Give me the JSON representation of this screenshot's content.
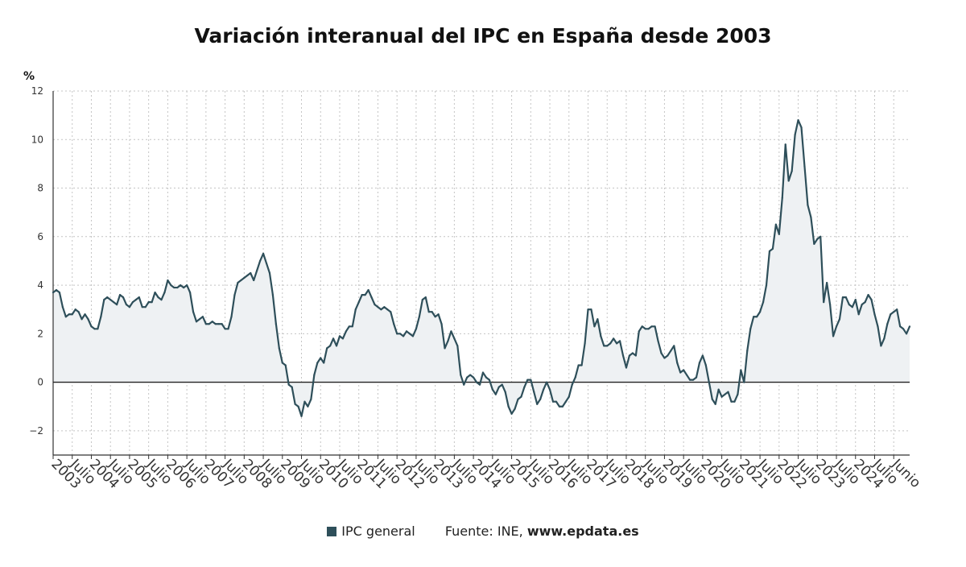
{
  "chart_data": {
    "type": "area",
    "title": "Variación interanual del IPC en España desde 2003",
    "ylabel": "%",
    "ylim": [
      -3,
      12
    ],
    "yticks": [
      12,
      10,
      8,
      6,
      4,
      2,
      0,
      -2
    ],
    "ytick_labels": [
      "12",
      "10",
      "8",
      "6",
      "4",
      "2",
      "0",
      "−2"
    ],
    "x_start": "2003-01",
    "x_end": "2025-06",
    "xtick_labels": [
      "2003",
      "Julio",
      "2004",
      "Julio",
      "2005",
      "Julio",
      "2006",
      "Julio",
      "2007",
      "Julio",
      "2008",
      "Julio",
      "2009",
      "Julio",
      "2010",
      "Julio",
      "2011",
      "Julio",
      "2012",
      "Julio",
      "2013",
      "Julio",
      "2014",
      "Julio",
      "2015",
      "Julio",
      "2016",
      "Julio",
      "2017",
      "Julio",
      "2018",
      "Julio",
      "2019",
      "Julio",
      "2020",
      "Julio",
      "2021",
      "Julio",
      "2022",
      "Julio",
      "2023",
      "Julio",
      "2024",
      "Julio",
      "Junio"
    ],
    "grid": true,
    "legend_position": "bottom-center",
    "series": [
      {
        "name": "IPC general",
        "color": "#2e4f5a",
        "fill": "#eef1f3",
        "values": [
          3.7,
          3.8,
          3.7,
          3.1,
          2.7,
          2.8,
          2.8,
          3.0,
          2.9,
          2.6,
          2.8,
          2.6,
          2.3,
          2.2,
          2.2,
          2.7,
          3.4,
          3.5,
          3.4,
          3.3,
          3.2,
          3.6,
          3.5,
          3.2,
          3.1,
          3.3,
          3.4,
          3.5,
          3.1,
          3.1,
          3.3,
          3.3,
          3.7,
          3.5,
          3.4,
          3.7,
          4.2,
          4.0,
          3.9,
          3.9,
          4.0,
          3.9,
          4.0,
          3.7,
          2.9,
          2.5,
          2.6,
          2.7,
          2.4,
          2.4,
          2.5,
          2.4,
          2.4,
          2.4,
          2.2,
          2.2,
          2.7,
          3.6,
          4.1,
          4.2,
          4.3,
          4.4,
          4.5,
          4.2,
          4.6,
          5.0,
          5.3,
          4.9,
          4.5,
          3.6,
          2.4,
          1.4,
          0.8,
          0.7,
          -0.1,
          -0.2,
          -0.9,
          -1.0,
          -1.4,
          -0.8,
          -1.0,
          -0.7,
          0.3,
          0.8,
          1.0,
          0.8,
          1.4,
          1.5,
          1.8,
          1.5,
          1.9,
          1.8,
          2.1,
          2.3,
          2.3,
          3.0,
          3.3,
          3.6,
          3.6,
          3.8,
          3.5,
          3.2,
          3.1,
          3.0,
          3.1,
          3.0,
          2.9,
          2.4,
          2.0,
          2.0,
          1.9,
          2.1,
          2.0,
          1.9,
          2.2,
          2.7,
          3.4,
          3.5,
          2.9,
          2.9,
          2.7,
          2.8,
          2.4,
          1.4,
          1.7,
          2.1,
          1.8,
          1.5,
          0.3,
          -0.1,
          0.2,
          0.3,
          0.2,
          0.0,
          -0.1,
          0.4,
          0.2,
          0.1,
          -0.3,
          -0.5,
          -0.2,
          -0.1,
          -0.4,
          -1.0,
          -1.3,
          -1.1,
          -0.7,
          -0.6,
          -0.2,
          0.1,
          0.1,
          -0.4,
          -0.9,
          -0.7,
          -0.3,
          0.0,
          -0.3,
          -0.8,
          -0.8,
          -1.0,
          -1.0,
          -0.8,
          -0.6,
          -0.1,
          0.2,
          0.7,
          0.7,
          1.6,
          3.0,
          3.0,
          2.3,
          2.6,
          1.9,
          1.5,
          1.5,
          1.6,
          1.8,
          1.6,
          1.7,
          1.1,
          0.6,
          1.1,
          1.2,
          1.1,
          2.1,
          2.3,
          2.2,
          2.2,
          2.3,
          2.3,
          1.7,
          1.2,
          1.0,
          1.1,
          1.3,
          1.5,
          0.8,
          0.4,
          0.5,
          0.3,
          0.1,
          0.1,
          0.2,
          0.8,
          1.1,
          0.7,
          0.0,
          -0.7,
          -0.9,
          -0.3,
          -0.6,
          -0.5,
          -0.4,
          -0.8,
          -0.8,
          -0.5,
          0.5,
          0.0,
          1.3,
          2.2,
          2.7,
          2.7,
          2.9,
          3.3,
          4.0,
          5.4,
          5.5,
          6.5,
          6.1,
          7.6,
          9.8,
          8.3,
          8.7,
          10.2,
          10.8,
          10.5,
          8.9,
          7.3,
          6.8,
          5.7,
          5.9,
          6.0,
          3.3,
          4.1,
          3.2,
          1.9,
          2.3,
          2.6,
          3.5,
          3.5,
          3.2,
          3.1,
          3.4,
          2.8,
          3.2,
          3.3,
          3.6,
          3.4,
          2.8,
          2.3,
          1.5,
          1.8,
          2.4,
          2.8,
          2.9,
          3.0,
          2.3,
          2.2,
          2.0,
          2.3
        ]
      }
    ]
  },
  "legend": {
    "series_label": "IPC general",
    "source_prefix": "Fuente: INE,",
    "source_site": "www.epdata.es"
  }
}
